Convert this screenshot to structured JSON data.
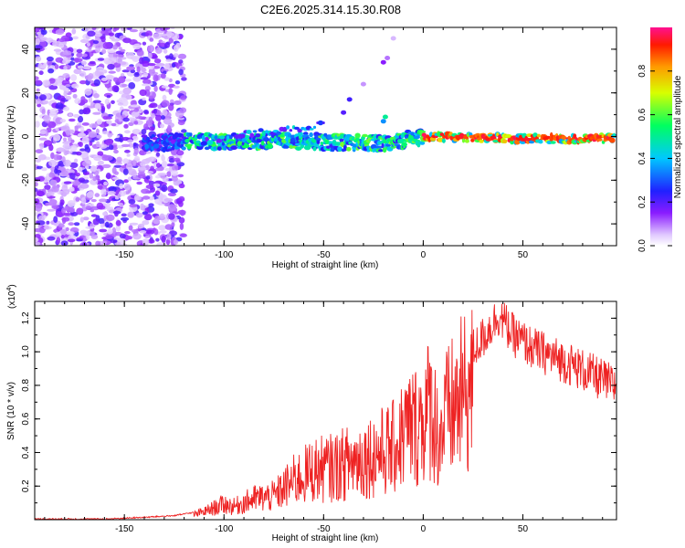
{
  "title": "C2E6.2025.314.15.30.R08",
  "chart_data": [
    {
      "type": "heatmap",
      "xlabel": "Height of straight line (km)",
      "ylabel": "Frequency (Hz)",
      "xlim": [
        -195,
        97
      ],
      "ylim": [
        -50,
        50
      ],
      "xticks": [
        -150,
        -100,
        -50,
        0,
        50
      ],
      "yticks": [
        -40,
        -20,
        0,
        20,
        40
      ],
      "description_series": [
        {
          "name": "scattered noise",
          "x_range": [
            -195,
            -120
          ],
          "y_range": [
            -50,
            50
          ]
        },
        {
          "name": "dominant band",
          "x": [
            -140,
            -100,
            -60,
            -35,
            -20,
            0,
            50,
            95
          ],
          "y": [
            -3,
            -2,
            -2,
            -3,
            -3,
            0,
            -1,
            -1
          ]
        },
        {
          "name": "upper branch",
          "x": [
            -110,
            -80,
            -60,
            -50,
            -40,
            -35,
            -22,
            -20,
            -18
          ],
          "y": [
            -2,
            2,
            4,
            6,
            11,
            17,
            4,
            9,
            35
          ]
        }
      ],
      "colorbar": {
        "label": "Normalized spectral amplitude",
        "ticks": [
          0.0,
          0.2,
          0.4,
          0.6,
          0.8
        ],
        "range": [
          0,
          1
        ]
      }
    },
    {
      "type": "line",
      "xlabel": "Height of straight line (km)",
      "ylabel": "SNR (10 * v/v)",
      "y_multiplier_label": "(x10",
      "y_multiplier_exp": "4",
      "xlim": [
        -195,
        97
      ],
      "ylim": [
        0,
        1.3
      ],
      "xticks": [
        -150,
        -100,
        -50,
        0,
        50
      ],
      "yticks": [
        0.2,
        0.4,
        0.6,
        0.8,
        1.0,
        1.2
      ],
      "series": [
        {
          "name": "SNR",
          "color": "#ee2222",
          "x": [
            -195,
            -180,
            -160,
            -140,
            -125,
            -115,
            -110,
            -100,
            -95,
            -85,
            -75,
            -65,
            -55,
            -45,
            -35,
            -25,
            -15,
            -8,
            -4,
            0,
            4,
            8,
            12,
            20,
            28,
            34,
            38,
            45,
            55,
            65,
            75,
            85,
            95
          ],
          "values": [
            0.0,
            0.0,
            0.0,
            0.01,
            0.02,
            0.04,
            0.06,
            0.12,
            0.1,
            0.16,
            0.18,
            0.3,
            0.38,
            0.4,
            0.45,
            0.5,
            0.55,
            0.7,
            0.72,
            0.78,
            0.88,
            0.62,
            0.8,
            0.95,
            1.05,
            1.15,
            1.22,
            1.1,
            1.02,
            0.97,
            0.92,
            0.86,
            0.8
          ]
        }
      ]
    }
  ]
}
